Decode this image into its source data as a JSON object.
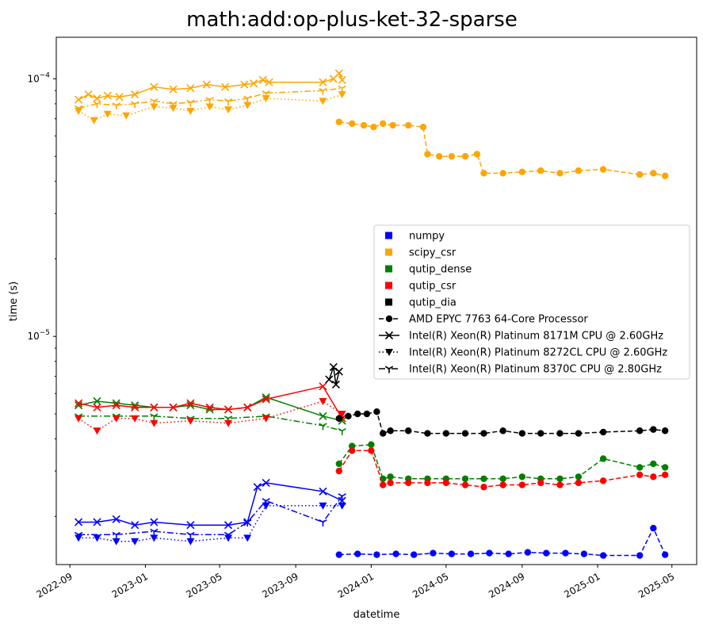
{
  "chart_data": {
    "type": "line",
    "title": "math:add:op-plus-ket-32-sparse",
    "xlabel": "datetime",
    "ylabel": "time (s)",
    "yscale": "log",
    "xlim": [
      "2022-08-10",
      "2025-06-10"
    ],
    "ylim": [
      1.3e-06,
      0.000145
    ],
    "x_ticks": [
      "2022-09",
      "2023-01",
      "2023-05",
      "2023-09",
      "2024-01",
      "2024-05",
      "2024-09",
      "2025-01",
      "2025-05"
    ],
    "y_ticks": [
      {
        "value": 1e-05,
        "label": "10",
        "exp": "−5"
      },
      {
        "value": 0.0001,
        "label": "10",
        "exp": "−4"
      }
    ],
    "grid": false,
    "legend_position": "center-right",
    "legend": {
      "libraries": [
        {
          "name": "numpy",
          "color": "#0000ff"
        },
        {
          "name": "scipy_csr",
          "color": "#ffa500"
        },
        {
          "name": "qutip_dense",
          "color": "#008000"
        },
        {
          "name": "qutip_csr",
          "color": "#ff0000"
        },
        {
          "name": "qutip_dia",
          "color": "#000000"
        }
      ],
      "cpus": [
        {
          "name": "AMD EPYC 7763 64-Core Processor",
          "marker": "circle",
          "dash": "dashed"
        },
        {
          "name": "Intel(R) Xeon(R) Platinum 8171M CPU @ 2.60GHz",
          "marker": "x",
          "dash": "solid"
        },
        {
          "name": "Intel(R) Xeon(R) Platinum 8272CL CPU @ 2.60GHz",
          "marker": "triangle-down",
          "dash": "dotted"
        },
        {
          "name": "Intel(R) Xeon(R) Platinum 8370C CPU @ 2.80GHz",
          "marker": "tri-down",
          "dash": "dashdot"
        }
      ]
    },
    "series": [
      {
        "library": "scipy_csr",
        "cpu": "Intel(R) Xeon(R) Platinum 8171M CPU @ 2.60GHz",
        "x": [
          "2022-09-15",
          "2022-10-01",
          "2022-10-15",
          "2022-11-01",
          "2022-11-20",
          "2022-12-15",
          "2023-01-15",
          "2023-02-15",
          "2023-03-15",
          "2023-04-10",
          "2023-05-10",
          "2023-06-10",
          "2023-06-25",
          "2023-07-10",
          "2023-07-20",
          "2023-10-15",
          "2023-11-01",
          "2023-11-10",
          "2023-11-15"
        ],
        "y": [
          8.3e-05,
          8.7e-05,
          8.4e-05,
          8.6e-05,
          8.5e-05,
          8.7e-05,
          9.3e-05,
          9.1e-05,
          9.2e-05,
          9.5e-05,
          9.3e-05,
          9.5e-05,
          9.6e-05,
          9.9e-05,
          9.7e-05,
          9.7e-05,
          0.0001,
          0.000105,
          9.9e-05
        ]
      },
      {
        "library": "scipy_csr",
        "cpu": "Intel(R) Xeon(R) Platinum 8272CL CPU @ 2.60GHz",
        "x": [
          "2022-09-15",
          "2022-10-10",
          "2022-11-01",
          "2022-12-01",
          "2023-01-15",
          "2023-02-15",
          "2023-03-15",
          "2023-04-15",
          "2023-05-15",
          "2023-06-15",
          "2023-07-15",
          "2023-10-15",
          "2023-11-15"
        ],
        "y": [
          7.5e-05,
          6.9e-05,
          7.3e-05,
          7.2e-05,
          7.8e-05,
          7.7e-05,
          7.5e-05,
          7.8e-05,
          7.6e-05,
          7.9e-05,
          8.4e-05,
          8.2e-05,
          8.7e-05
        ]
      },
      {
        "library": "scipy_csr",
        "cpu": "Intel(R) Xeon(R) Platinum 8370C CPU @ 2.80GHz",
        "x": [
          "2022-09-15",
          "2022-10-15",
          "2022-11-15",
          "2022-12-15",
          "2023-01-15",
          "2023-02-15",
          "2023-03-15",
          "2023-04-15",
          "2023-05-15",
          "2023-06-15",
          "2023-07-15",
          "2023-10-15",
          "2023-11-15"
        ],
        "y": [
          7.7e-05,
          8e-05,
          7.9e-05,
          8e-05,
          8.2e-05,
          8e-05,
          8.1e-05,
          8.3e-05,
          8.2e-05,
          8.4e-05,
          8.8e-05,
          9e-05,
          9.2e-05
        ]
      },
      {
        "library": "scipy_csr",
        "cpu": "AMD EPYC 7763 64-Core Processor",
        "x": [
          "2023-11-10",
          "2023-12-01",
          "2023-12-20",
          "2024-01-05",
          "2024-01-20",
          "2024-02-05",
          "2024-03-01",
          "2024-03-25",
          "2024-04-01",
          "2024-04-20",
          "2024-05-10",
          "2024-06-01",
          "2024-06-20",
          "2024-07-01",
          "2024-08-01",
          "2024-09-01",
          "2024-10-01",
          "2024-11-01",
          "2024-12-01",
          "2025-01-10",
          "2025-03-10",
          "2025-04-01",
          "2025-04-20"
        ],
        "y": [
          6.8e-05,
          6.7e-05,
          6.6e-05,
          6.5e-05,
          6.7e-05,
          6.6e-05,
          6.6e-05,
          6.5e-05,
          5.1e-05,
          5e-05,
          5e-05,
          5e-05,
          5.1e-05,
          4.3e-05,
          4.3e-05,
          4.35e-05,
          4.4e-05,
          4.3e-05,
          4.4e-05,
          4.45e-05,
          4.25e-05,
          4.3e-05,
          4.2e-05
        ]
      },
      {
        "library": "qutip_dense",
        "cpu": "Intel(R) Xeon(R) Platinum 8171M CPU @ 2.60GHz",
        "x": [
          "2022-09-15",
          "2022-10-15",
          "2022-11-15",
          "2022-12-15",
          "2023-01-15",
          "2023-02-15",
          "2023-03-15",
          "2023-04-15",
          "2023-05-15",
          "2023-06-15",
          "2023-07-15",
          "2023-10-15",
          "2023-11-15"
        ],
        "y": [
          5.4e-06,
          5.6e-06,
          5.5e-06,
          5.4e-06,
          5.3e-06,
          5.3e-06,
          5.4e-06,
          5.2e-06,
          5.2e-06,
          5.3e-06,
          5.8e-06,
          4.9e-06,
          4.7e-06
        ]
      },
      {
        "library": "qutip_dense",
        "cpu": "Intel(R) Xeon(R) Platinum 8370C CPU @ 2.80GHz",
        "x": [
          "2022-09-15",
          "2022-11-15",
          "2023-01-15",
          "2023-03-15",
          "2023-05-15",
          "2023-07-15",
          "2023-10-15",
          "2023-11-15"
        ],
        "y": [
          4.9e-06,
          4.9e-06,
          4.9e-06,
          4.8e-06,
          4.8e-06,
          4.9e-06,
          4.5e-06,
          4.3e-06
        ]
      },
      {
        "library": "qutip_dense",
        "cpu": "AMD EPYC 7763 64-Core Processor",
        "x": [
          "2023-11-10",
          "2023-12-01",
          "2024-01-01",
          "2024-01-20",
          "2024-02-01",
          "2024-03-01",
          "2024-04-01",
          "2024-05-01",
          "2024-06-01",
          "2024-07-01",
          "2024-08-01",
          "2024-09-01",
          "2024-10-01",
          "2024-11-01",
          "2024-12-01",
          "2025-01-10",
          "2025-03-10",
          "2025-04-01",
          "2025-04-20"
        ],
        "y": [
          3.2e-06,
          3.75e-06,
          3.8e-06,
          2.8e-06,
          2.85e-06,
          2.8e-06,
          2.8e-06,
          2.8e-06,
          2.8e-06,
          2.8e-06,
          2.8e-06,
          2.85e-06,
          2.8e-06,
          2.8e-06,
          2.85e-06,
          3.35e-06,
          3.1e-06,
          3.2e-06,
          3.1e-06
        ]
      },
      {
        "library": "qutip_csr",
        "cpu": "Intel(R) Xeon(R) Platinum 8171M CPU @ 2.60GHz",
        "x": [
          "2022-09-15",
          "2022-10-15",
          "2022-11-15",
          "2022-12-15",
          "2023-01-15",
          "2023-02-15",
          "2023-03-15",
          "2023-04-15",
          "2023-05-15",
          "2023-06-15",
          "2023-07-15",
          "2023-10-15",
          "2023-11-15"
        ],
        "y": [
          5.5e-06,
          5.3e-06,
          5.4e-06,
          5.3e-06,
          5.3e-06,
          5.3e-06,
          5.5e-06,
          5.3e-06,
          5.2e-06,
          5.3e-06,
          5.7e-06,
          6.4e-06,
          4.8e-06
        ]
      },
      {
        "library": "qutip_csr",
        "cpu": "Intel(R) Xeon(R) Platinum 8272CL CPU @ 2.60GHz",
        "x": [
          "2022-09-15",
          "2022-10-15",
          "2022-11-15",
          "2022-12-15",
          "2023-01-15",
          "2023-03-15",
          "2023-05-15",
          "2023-07-15",
          "2023-10-15",
          "2023-11-15"
        ],
        "y": [
          4.8e-06,
          4.3e-06,
          4.8e-06,
          4.8e-06,
          4.6e-06,
          4.7e-06,
          4.6e-06,
          4.8e-06,
          5.6e-06,
          5e-06
        ]
      },
      {
        "library": "qutip_csr",
        "cpu": "AMD EPYC 7763 64-Core Processor",
        "x": [
          "2023-11-10",
          "2023-12-01",
          "2024-01-01",
          "2024-01-20",
          "2024-02-01",
          "2024-03-01",
          "2024-04-01",
          "2024-05-01",
          "2024-06-01",
          "2024-07-01",
          "2024-08-01",
          "2024-09-01",
          "2024-10-01",
          "2024-11-01",
          "2024-12-01",
          "2025-01-10",
          "2025-03-10",
          "2025-04-01",
          "2025-04-20"
        ],
        "y": [
          3e-06,
          3.6e-06,
          3.6e-06,
          2.65e-06,
          2.7e-06,
          2.7e-06,
          2.7e-06,
          2.7e-06,
          2.65e-06,
          2.6e-06,
          2.65e-06,
          2.65e-06,
          2.7e-06,
          2.65e-06,
          2.7e-06,
          2.75e-06,
          2.9e-06,
          2.85e-06,
          2.9e-06
        ]
      },
      {
        "library": "qutip_dia",
        "cpu": "Intel(R) Xeon(R) Platinum 8171M CPU @ 2.60GHz",
        "x": [
          "2023-10-25",
          "2023-11-01",
          "2023-11-05",
          "2023-11-10"
        ],
        "y": [
          6.8e-06,
          7.6e-06,
          6.5e-06,
          7.3e-06
        ]
      },
      {
        "library": "qutip_dia",
        "cpu": "AMD EPYC 7763 64-Core Processor",
        "x": [
          "2023-11-10",
          "2023-11-25",
          "2023-12-10",
          "2023-12-25",
          "2024-01-10",
          "2024-01-20",
          "2024-02-01",
          "2024-03-01",
          "2024-04-01",
          "2024-05-01",
          "2024-06-01",
          "2024-07-01",
          "2024-08-01",
          "2024-09-01",
          "2024-10-01",
          "2024-11-01",
          "2024-12-01",
          "2025-01-10",
          "2025-03-10",
          "2025-04-01",
          "2025-04-20"
        ],
        "y": [
          4.8e-06,
          4.9e-06,
          5e-06,
          5e-06,
          5.1e-06,
          4.2e-06,
          4.3e-06,
          4.3e-06,
          4.2e-06,
          4.2e-06,
          4.2e-06,
          4.2e-06,
          4.3e-06,
          4.2e-06,
          4.2e-06,
          4.2e-06,
          4.2e-06,
          4.25e-06,
          4.3e-06,
          4.35e-06,
          4.3e-06
        ]
      },
      {
        "library": "numpy",
        "cpu": "Intel(R) Xeon(R) Platinum 8171M CPU @ 2.60GHz",
        "x": [
          "2022-09-15",
          "2022-10-15",
          "2022-11-15",
          "2022-12-15",
          "2023-01-15",
          "2023-03-15",
          "2023-05-15",
          "2023-06-15",
          "2023-07-01",
          "2023-07-15",
          "2023-10-15",
          "2023-11-15"
        ],
        "y": [
          1.9e-06,
          1.9e-06,
          1.95e-06,
          1.85e-06,
          1.9e-06,
          1.85e-06,
          1.85e-06,
          1.9e-06,
          2.6e-06,
          2.7e-06,
          2.5e-06,
          2.3e-06
        ]
      },
      {
        "library": "numpy",
        "cpu": "Intel(R) Xeon(R) Platinum 8272CL CPU @ 2.60GHz",
        "x": [
          "2022-09-15",
          "2022-10-15",
          "2022-11-15",
          "2022-12-15",
          "2023-01-15",
          "2023-03-15",
          "2023-05-15",
          "2023-06-15",
          "2023-07-15",
          "2023-10-15",
          "2023-11-15"
        ],
        "y": [
          1.65e-06,
          1.65e-06,
          1.6e-06,
          1.6e-06,
          1.65e-06,
          1.6e-06,
          1.65e-06,
          1.65e-06,
          2.2e-06,
          2.2e-06,
          2.2e-06
        ]
      },
      {
        "library": "numpy",
        "cpu": "Intel(R) Xeon(R) Platinum 8370C CPU @ 2.80GHz",
        "x": [
          "2022-09-15",
          "2022-11-15",
          "2023-01-15",
          "2023-03-15",
          "2023-05-15",
          "2023-06-15",
          "2023-07-15",
          "2023-10-15",
          "2023-11-15"
        ],
        "y": [
          1.7e-06,
          1.7e-06,
          1.75e-06,
          1.7e-06,
          1.7e-06,
          1.9e-06,
          2.3e-06,
          1.9e-06,
          2.4e-06
        ]
      },
      {
        "library": "numpy",
        "cpu": "AMD EPYC 7763 64-Core Processor",
        "x": [
          "2023-11-10",
          "2023-12-10",
          "2024-01-10",
          "2024-02-10",
          "2024-03-10",
          "2024-04-10",
          "2024-05-10",
          "2024-06-10",
          "2024-07-10",
          "2024-08-10",
          "2024-09-10",
          "2024-10-10",
          "2024-11-10",
          "2024-12-10",
          "2025-01-10",
          "2025-03-10",
          "2025-04-01",
          "2025-04-20"
        ],
        "y": [
          1.42e-06,
          1.43e-06,
          1.42e-06,
          1.43e-06,
          1.42e-06,
          1.44e-06,
          1.43e-06,
          1.43e-06,
          1.44e-06,
          1.43e-06,
          1.45e-06,
          1.44e-06,
          1.44e-06,
          1.43e-06,
          1.41e-06,
          1.41e-06,
          1.8e-06,
          1.42e-06
        ]
      }
    ]
  }
}
